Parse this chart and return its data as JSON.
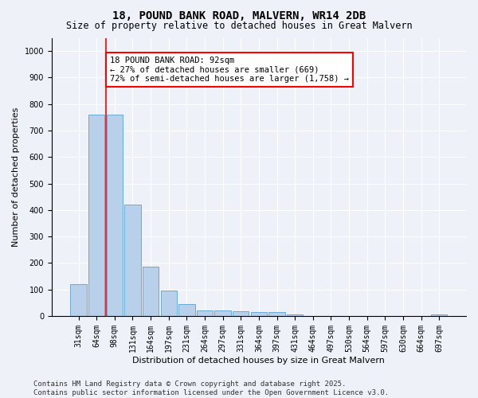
{
  "title": "18, POUND BANK ROAD, MALVERN, WR14 2DB",
  "subtitle": "Size of property relative to detached houses in Great Malvern",
  "xlabel": "Distribution of detached houses by size in Great Malvern",
  "ylabel": "Number of detached properties",
  "categories": [
    "31sqm",
    "64sqm",
    "98sqm",
    "131sqm",
    "164sqm",
    "197sqm",
    "231sqm",
    "264sqm",
    "297sqm",
    "331sqm",
    "364sqm",
    "397sqm",
    "431sqm",
    "464sqm",
    "497sqm",
    "530sqm",
    "564sqm",
    "597sqm",
    "630sqm",
    "664sqm",
    "697sqm"
  ],
  "values": [
    120,
    760,
    760,
    420,
    185,
    95,
    45,
    20,
    22,
    18,
    16,
    16,
    5,
    0,
    0,
    0,
    0,
    0,
    0,
    0,
    5
  ],
  "bar_color": "#b8d0ea",
  "bar_edge_color": "#6aaad4",
  "background_color": "#eef2f8",
  "ylim": [
    0,
    1050
  ],
  "yticks": [
    0,
    100,
    200,
    300,
    400,
    500,
    600,
    700,
    800,
    900,
    1000
  ],
  "annotation_line1": "18 POUND BANK ROAD: 92sqm",
  "annotation_line2": "← 27% of detached houses are smaller (669)",
  "annotation_line3": "72% of semi-detached houses are larger (1,758) →",
  "vline_pos": 1.5,
  "footer_line1": "Contains HM Land Registry data © Crown copyright and database right 2025.",
  "footer_line2": "Contains public sector information licensed under the Open Government Licence v3.0.",
  "title_fontsize": 10,
  "subtitle_fontsize": 8.5,
  "annotation_fontsize": 7.5,
  "axis_label_fontsize": 8,
  "tick_fontsize": 7,
  "footer_fontsize": 6.5
}
